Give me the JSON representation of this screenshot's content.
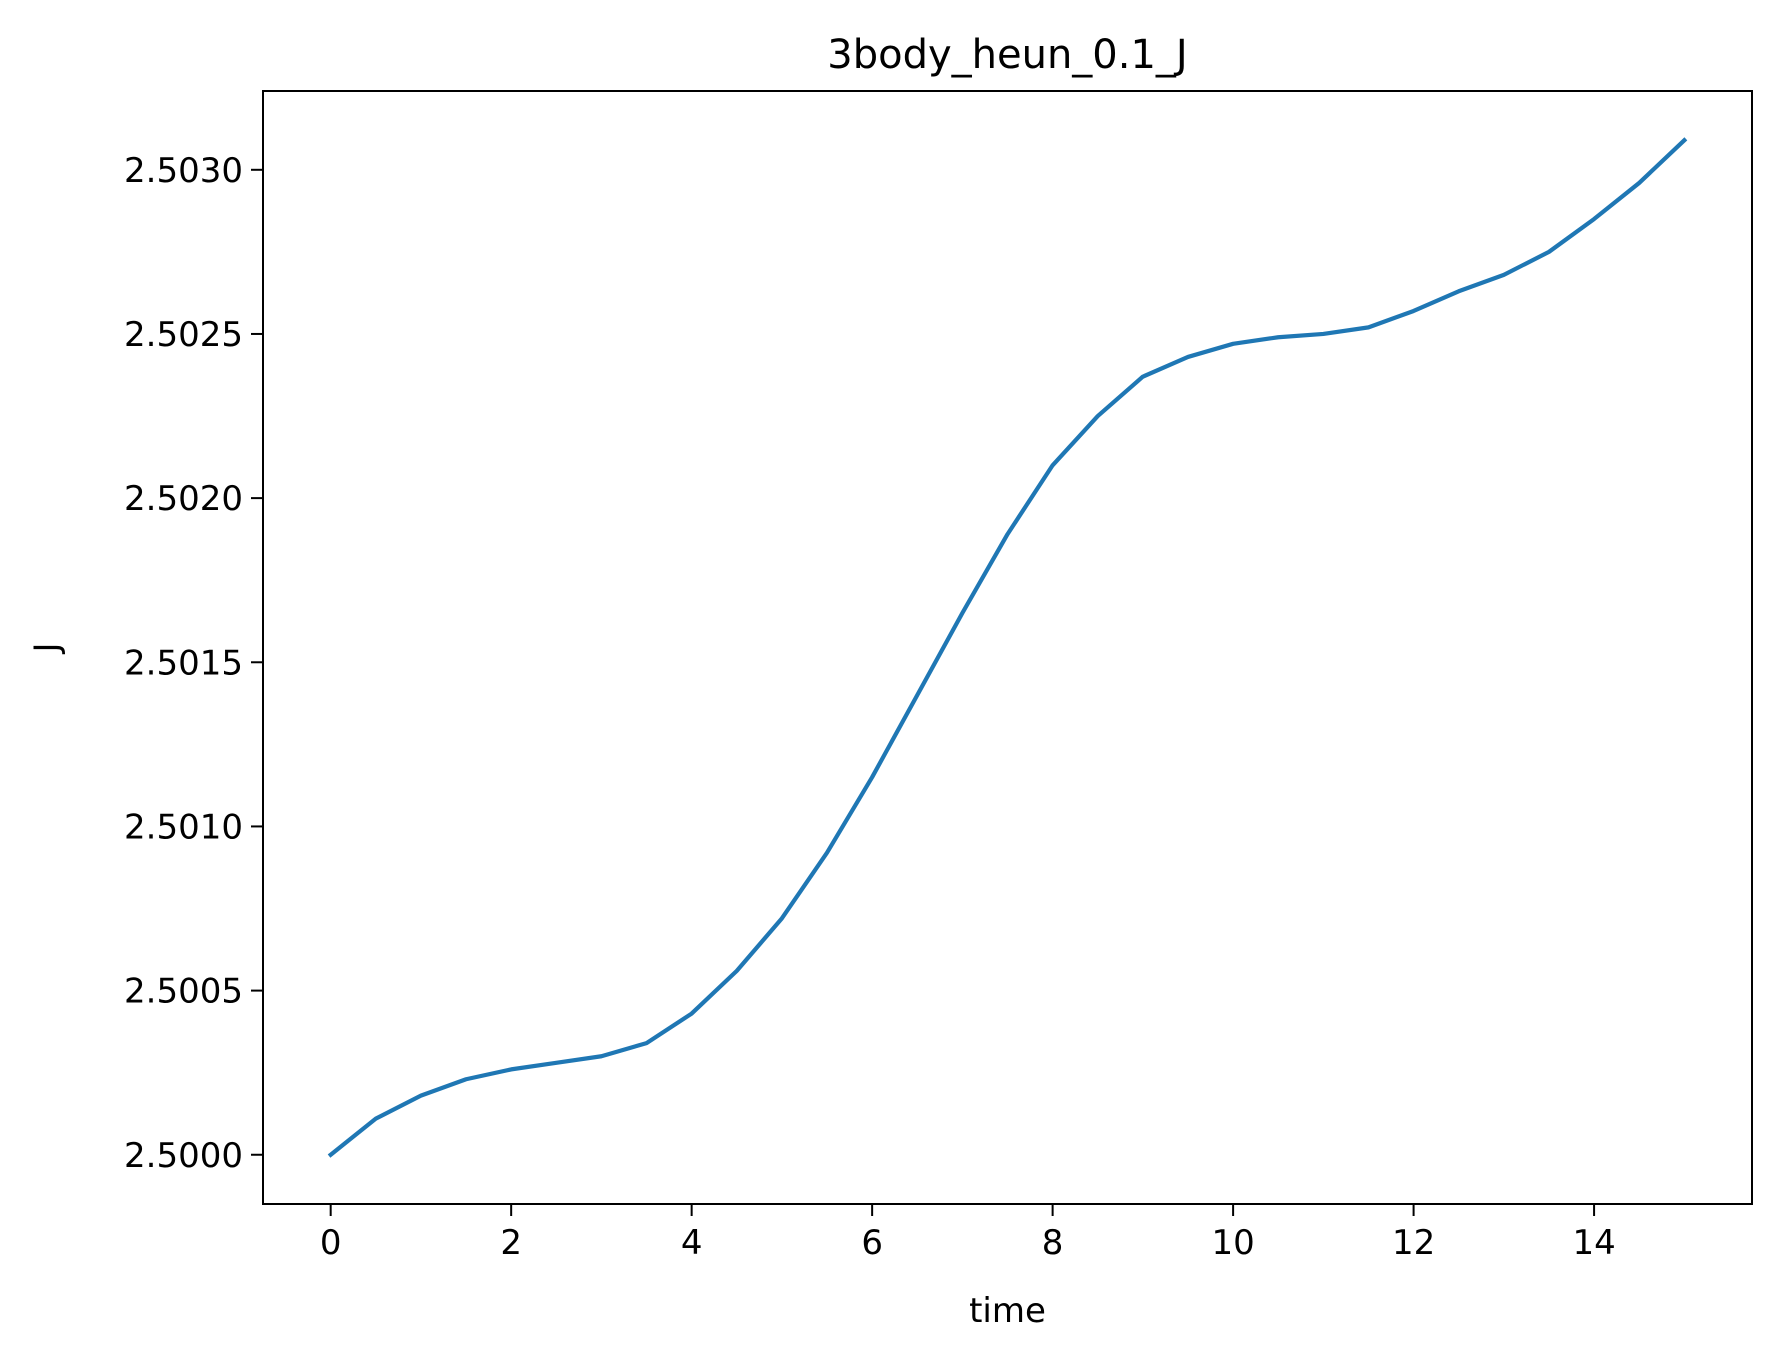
{
  "chart_data": {
    "type": "line",
    "title": "3body_heun_0.1_J",
    "xlabel": "time",
    "ylabel": "J",
    "xlim": [
      -0.75,
      15.75
    ],
    "ylim": [
      2.49985,
      2.50324
    ],
    "xticks": [
      0,
      2,
      4,
      6,
      8,
      10,
      12,
      14
    ],
    "xtick_labels": [
      "0",
      "2",
      "4",
      "6",
      "8",
      "10",
      "12",
      "14"
    ],
    "yticks": [
      2.5,
      2.5005,
      2.501,
      2.5015,
      2.502,
      2.5025,
      2.503
    ],
    "ytick_labels": [
      "2.5000",
      "2.5005",
      "2.5010",
      "2.5015",
      "2.5020",
      "2.5025",
      "2.5030"
    ],
    "grid": false,
    "legend": "none",
    "series": [
      {
        "color": "#1f77b4",
        "x": [
          0,
          0.5,
          1,
          1.5,
          2,
          2.5,
          3,
          3.5,
          4,
          4.5,
          5,
          5.5,
          6,
          6.5,
          7,
          7.5,
          8,
          8.5,
          9,
          9.5,
          10,
          10.5,
          11,
          11.5,
          12,
          12.5,
          13,
          13.5,
          14,
          14.5,
          15
        ],
        "y": [
          2.5,
          2.50011,
          2.50018,
          2.50023,
          2.50026,
          2.50028,
          2.5003,
          2.50034,
          2.50043,
          2.50056,
          2.50072,
          2.50092,
          2.50115,
          2.5014,
          2.50165,
          2.50189,
          2.5021,
          2.50225,
          2.50237,
          2.50243,
          2.50247,
          2.50249,
          2.5025,
          2.50252,
          2.50257,
          2.50263,
          2.50268,
          2.50275,
          2.50285,
          2.50296,
          2.50309
        ]
      }
    ]
  }
}
